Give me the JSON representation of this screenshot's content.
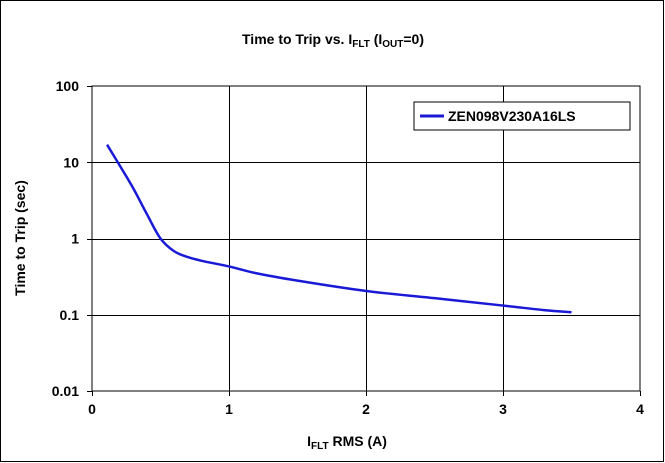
{
  "chart_data": {
    "type": "line",
    "title": {
      "prefix": "Time to Trip vs. I",
      "sub1": "FLT",
      "mid": " (I",
      "sub2": "OUT",
      "suffix": "=0)"
    },
    "xlabel": {
      "main": "I",
      "sub": "FLT",
      "rest": " RMS (A)"
    },
    "ylabel": "Time to Trip (sec)",
    "x_scale": "linear",
    "y_scale": "log",
    "xlim": [
      0,
      4
    ],
    "ylim": [
      0.01,
      100
    ],
    "x_ticks": [
      0,
      1,
      2,
      3,
      4
    ],
    "x_tick_labels": [
      "0",
      "1",
      "2",
      "3",
      "4"
    ],
    "y_ticks": [
      0.01,
      0.1,
      1,
      10,
      100
    ],
    "y_tick_labels": [
      "0.01",
      "0.1",
      "1",
      "10",
      "100"
    ],
    "grid": true,
    "legend_position": "top-right",
    "series": [
      {
        "name": "ZEN098V230A16LS",
        "color": "#1a1ad6",
        "x": [
          0.11,
          0.2,
          0.3,
          0.4,
          0.5,
          0.6,
          0.7,
          0.8,
          1.0,
          1.2,
          1.5,
          2.0,
          2.5,
          3.0,
          3.3,
          3.5
        ],
        "y": [
          17,
          9.2,
          4.6,
          2.1,
          1.0,
          0.68,
          0.57,
          0.51,
          0.43,
          0.35,
          0.28,
          0.205,
          0.165,
          0.132,
          0.115,
          0.108
        ]
      }
    ]
  }
}
